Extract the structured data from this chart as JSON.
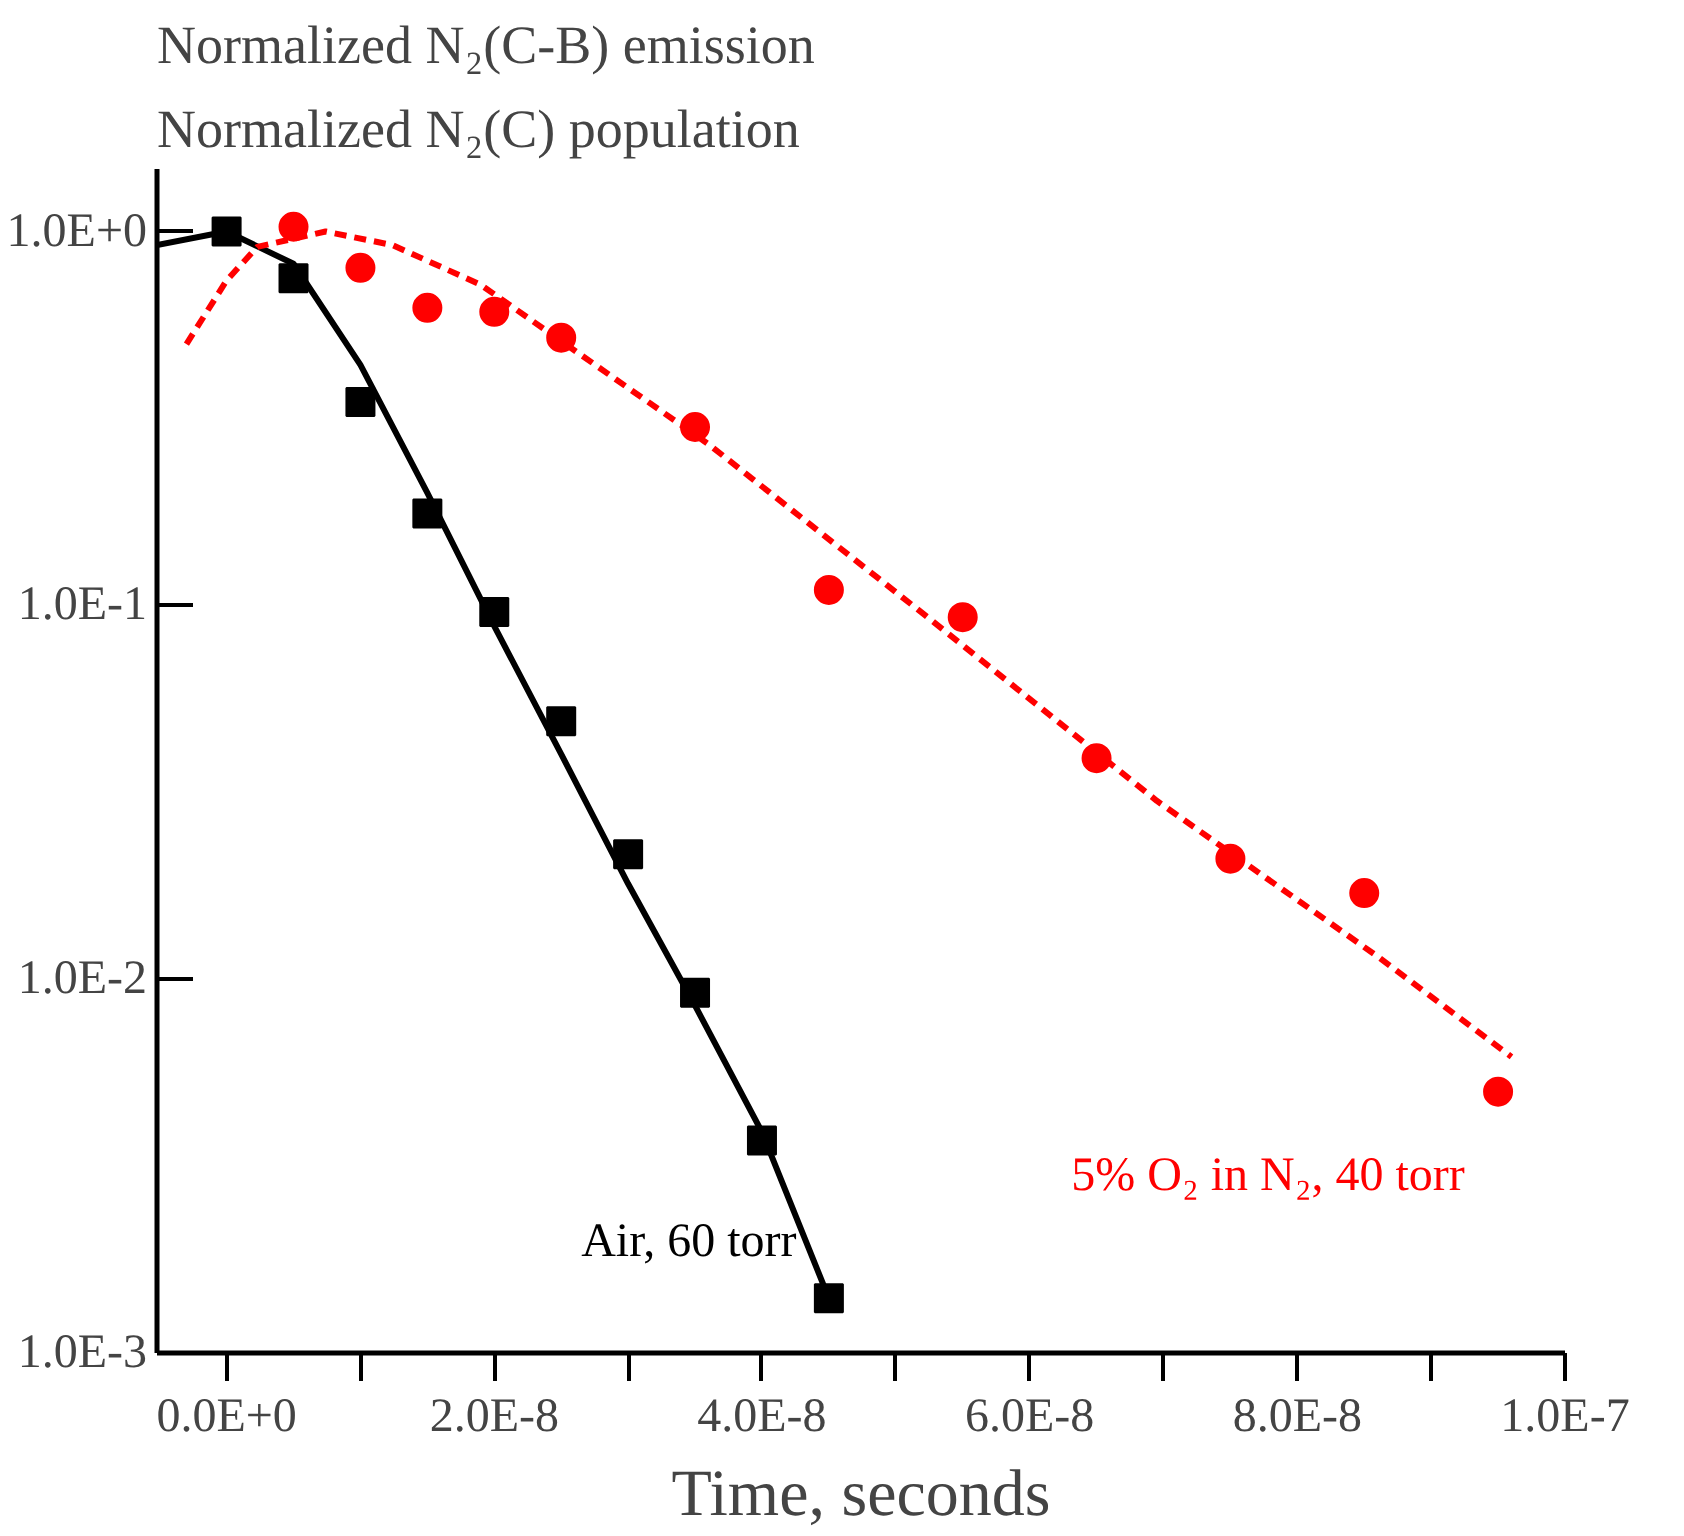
{
  "chart_data": {
    "type": "scatter",
    "title": "Normalized N₂(C-B) emission",
    "subtitle": "Normalized N₂(C) population",
    "xlabel": "Time, seconds",
    "log": "y",
    "grid": false,
    "xlim": [
      -5.2e-09,
      1e-07
    ],
    "ylim": [
      0.001,
      1.47
    ],
    "xticks": [
      {
        "value": 0,
        "label": "0.0E+0"
      },
      {
        "value": 1e-08,
        "label": null
      },
      {
        "value": 2e-08,
        "label": "2.0E-8"
      },
      {
        "value": 3e-08,
        "label": null
      },
      {
        "value": 4e-08,
        "label": "4.0E-8"
      },
      {
        "value": 5e-08,
        "label": null
      },
      {
        "value": 6e-08,
        "label": "6.0E-8"
      },
      {
        "value": 7e-08,
        "label": null
      },
      {
        "value": 8e-08,
        "label": "8.0E-8"
      },
      {
        "value": 9e-08,
        "label": null
      },
      {
        "value": 1e-07,
        "label": "1.0E-7"
      }
    ],
    "yticks": [
      {
        "value": 0.001,
        "label": "1.0E-3"
      },
      {
        "value": 0.01,
        "label": "1.0E-2"
      },
      {
        "value": 0.1,
        "label": "1.0E-1"
      },
      {
        "value": 1,
        "label": "1.0E+0"
      }
    ],
    "series": [
      {
        "marker": "square",
        "color": "#000000",
        "x": [
          0,
          5e-09,
          1e-08,
          1.5e-08,
          2e-08,
          2.5e-08,
          3e-08,
          3.5e-08,
          4e-08,
          4.5e-08
        ],
        "values": [
          1.0,
          0.75,
          0.35,
          0.176,
          0.096,
          0.049,
          0.0216,
          0.0092,
          0.0037,
          0.0014
        ]
      },
      {
        "type": "line",
        "line_style": "solid",
        "color": "#000000",
        "x": [
          -5.2e-09,
          0,
          5e-09,
          1e-08,
          1.5e-08,
          2e-08,
          2.5e-08,
          3e-08,
          3.5e-08,
          4e-08,
          4.5e-08
        ],
        "values": [
          0.92,
          1.0,
          0.82,
          0.44,
          0.2,
          0.088,
          0.04,
          0.018,
          0.0085,
          0.0039,
          0.0014
        ]
      },
      {
        "marker": "circle",
        "color": "#ff0000",
        "x": [
          5e-09,
          1e-08,
          1.5e-08,
          2e-08,
          2.5e-08,
          3.5e-08,
          4.5e-08,
          5.5e-08,
          6.5e-08,
          7.5e-08,
          8.5e-08,
          9.5e-08
        ],
        "values": [
          1.03,
          0.8,
          0.625,
          0.61,
          0.52,
          0.3,
          0.11,
          0.093,
          0.039,
          0.021,
          0.017,
          0.005
        ]
      },
      {
        "type": "line",
        "line_style": "dashed",
        "color": "#ff0000",
        "x": [
          -3e-09,
          0,
          2.3e-09,
          7.4e-09,
          1.24e-08,
          1.9e-08,
          3.6e-08,
          5.27e-08,
          6.95e-08,
          8.6e-08,
          9.6e-08
        ],
        "values": [
          0.5,
          0.74,
          0.91,
          1.0,
          0.92,
          0.72,
          0.27,
          0.091,
          0.03,
          0.0115,
          0.0062
        ]
      }
    ],
    "annotations": [
      "Air, 60 torr",
      "5% O₂ in N₂, 40 torr"
    ]
  }
}
